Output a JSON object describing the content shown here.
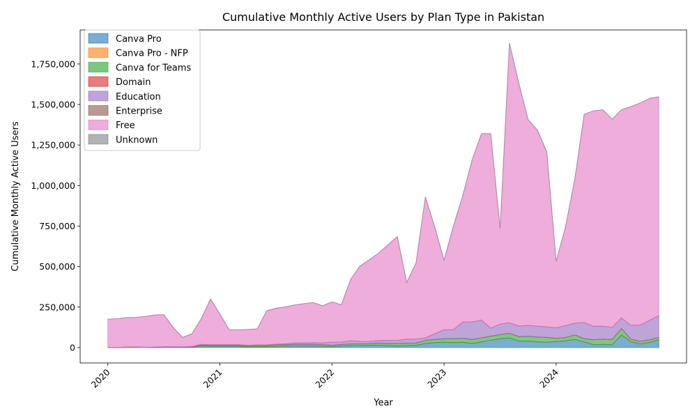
{
  "chart_data": {
    "type": "area",
    "stacked": true,
    "title": "Cumulative Monthly Active Users by Plan Type in Pakistan",
    "xlabel": "Year",
    "ylabel": "Cumulative Monthly Active Users",
    "x_ticks": [
      "2020",
      "2021",
      "2022",
      "2023",
      "2024"
    ],
    "ylim": [
      -95000,
      1960000
    ],
    "y_ticks": [
      "0",
      "250,000",
      "500,000",
      "750,000",
      "1,000,000",
      "1,250,000",
      "1,500,000",
      "1,750,000"
    ],
    "legend_position": "top-left",
    "grid": false,
    "x": [
      "2020-01",
      "2020-02",
      "2020-03",
      "2020-04",
      "2020-05",
      "2020-06",
      "2020-07",
      "2020-08",
      "2020-09",
      "2020-10",
      "2020-11",
      "2020-12",
      "2021-01",
      "2021-02",
      "2021-03",
      "2021-04",
      "2021-05",
      "2021-06",
      "2021-07",
      "2021-08",
      "2021-09",
      "2021-10",
      "2021-11",
      "2021-12",
      "2022-01",
      "2022-02",
      "2022-03",
      "2022-04",
      "2022-05",
      "2022-06",
      "2022-07",
      "2022-08",
      "2022-09",
      "2022-10",
      "2022-11",
      "2022-12",
      "2023-01",
      "2023-02",
      "2023-03",
      "2023-04",
      "2023-05",
      "2023-06",
      "2023-07",
      "2023-08",
      "2023-09",
      "2023-10",
      "2023-11",
      "2023-12",
      "2024-01",
      "2024-02",
      "2024-03",
      "2024-04",
      "2024-05",
      "2024-06",
      "2024-07",
      "2024-08",
      "2024-09",
      "2024-10",
      "2024-11",
      "2024-12"
    ],
    "series": [
      {
        "name": "Canva Pro",
        "color": "#1f77b4",
        "values": [
          0,
          0,
          2000,
          2000,
          2000,
          0,
          2000,
          2000,
          2000,
          3000,
          10000,
          8000,
          8000,
          8000,
          8000,
          4000,
          5000,
          5000,
          7000,
          9000,
          10000,
          10000,
          10000,
          8000,
          6000,
          10000,
          12000,
          13000,
          13000,
          15000,
          12000,
          10000,
          12000,
          14000,
          25000,
          30000,
          33000,
          30000,
          33000,
          25000,
          35000,
          45000,
          55000,
          60000,
          40000,
          40000,
          35000,
          33000,
          37000,
          42000,
          50000,
          35000,
          18000,
          20000,
          18000,
          75000,
          35000,
          20000,
          30000,
          48000
        ]
      },
      {
        "name": "Canva Pro - NFP",
        "color": "#ff7f0e",
        "values": [
          0,
          0,
          0,
          0,
          0,
          0,
          0,
          0,
          0,
          0,
          0,
          0,
          0,
          0,
          0,
          0,
          0,
          0,
          0,
          0,
          0,
          0,
          0,
          0,
          0,
          0,
          0,
          0,
          0,
          0,
          0,
          0,
          0,
          0,
          0,
          0,
          0,
          0,
          0,
          0,
          0,
          0,
          0,
          0,
          0,
          0,
          0,
          0,
          0,
          0,
          0,
          0,
          0,
          0,
          0,
          3000,
          2000,
          4000,
          3000,
          0
        ]
      },
      {
        "name": "Canva for Teams",
        "color": "#2ca02c",
        "values": [
          0,
          0,
          2000,
          2000,
          0,
          0,
          0,
          0,
          0,
          0,
          5000,
          5000,
          5000,
          5000,
          5000,
          5000,
          7000,
          7000,
          9000,
          9000,
          10000,
          10000,
          10000,
          10000,
          8000,
          9000,
          10000,
          10000,
          10000,
          13000,
          12000,
          15000,
          15000,
          14000,
          20000,
          20000,
          22000,
          25000,
          25000,
          25000,
          25000,
          25000,
          25000,
          28000,
          28000,
          30000,
          30000,
          30000,
          20000,
          20000,
          28000,
          20000,
          30000,
          32000,
          32000,
          40000,
          15000,
          15000,
          15000,
          15000
        ]
      },
      {
        "name": "Domain",
        "color": "#d62728",
        "values": [
          0,
          0,
          0,
          0,
          0,
          0,
          0,
          0,
          0,
          0,
          0,
          0,
          0,
          0,
          0,
          0,
          0,
          0,
          0,
          0,
          0,
          0,
          0,
          0,
          0,
          0,
          0,
          0,
          0,
          0,
          0,
          0,
          0,
          0,
          0,
          0,
          0,
          0,
          0,
          0,
          0,
          0,
          0,
          0,
          0,
          0,
          0,
          0,
          0,
          0,
          0,
          0,
          0,
          0,
          0,
          0,
          0,
          0,
          0,
          0
        ]
      },
      {
        "name": "Education",
        "color": "#9467bd",
        "values": [
          0,
          0,
          0,
          0,
          0,
          3000,
          3000,
          3000,
          3000,
          4000,
          5000,
          5000,
          5000,
          5000,
          5000,
          5000,
          5000,
          5000,
          5000,
          5000,
          8000,
          9000,
          10000,
          10000,
          20000,
          15000,
          20000,
          15000,
          15000,
          15000,
          20000,
          20000,
          25000,
          25000,
          15000,
          35000,
          55000,
          55000,
          100000,
          108000,
          110000,
          50000,
          65000,
          65000,
          65000,
          67000,
          67000,
          65000,
          65000,
          73000,
          73000,
          100000,
          83000,
          80000,
          75000,
          65000,
          85000,
          100000,
          120000,
          135000
        ]
      },
      {
        "name": "Enterprise",
        "color": "#8c564b",
        "values": [
          0,
          0,
          0,
          0,
          0,
          0,
          0,
          0,
          0,
          0,
          0,
          0,
          0,
          0,
          0,
          0,
          0,
          0,
          0,
          0,
          0,
          0,
          0,
          0,
          0,
          0,
          0,
          0,
          0,
          0,
          0,
          0,
          0,
          0,
          0,
          0,
          0,
          0,
          0,
          0,
          0,
          0,
          0,
          0,
          0,
          0,
          0,
          0,
          0,
          0,
          0,
          0,
          0,
          0,
          0,
          0,
          0,
          0,
          0,
          0
        ]
      },
      {
        "name": "Free",
        "color": "#e377c2",
        "values": [
          175000,
          178000,
          181000,
          182000,
          190000,
          198000,
          198000,
          120000,
          58000,
          78000,
          158000,
          282000,
          190000,
          92000,
          92000,
          98000,
          98000,
          210000,
          222000,
          228000,
          235000,
          242000,
          248000,
          230000,
          248000,
          230000,
          380000,
          465000,
          505000,
          540000,
          590000,
          640000,
          350000,
          470000,
          870000,
          660000,
          430000,
          640000,
          780000,
          1000000,
          1150000,
          1200000,
          590000,
          1725000,
          1500000,
          1270000,
          1210000,
          1080000,
          410000,
          610000,
          890000,
          1285000,
          1330000,
          1335000,
          1285000,
          1285000,
          1350000,
          1370000,
          1370000,
          1350000
        ]
      },
      {
        "name": "Unknown",
        "color": "#7f7f7f",
        "values": [
          0,
          0,
          0,
          0,
          0,
          0,
          0,
          0,
          0,
          0,
          0,
          0,
          0,
          0,
          0,
          0,
          0,
          0,
          0,
          0,
          0,
          0,
          0,
          0,
          0,
          0,
          0,
          0,
          0,
          0,
          0,
          0,
          0,
          0,
          0,
          0,
          0,
          0,
          0,
          0,
          0,
          0,
          0,
          0,
          0,
          0,
          0,
          0,
          0,
          0,
          0,
          0,
          0,
          0,
          0,
          0,
          0,
          0,
          0,
          0
        ]
      }
    ]
  }
}
